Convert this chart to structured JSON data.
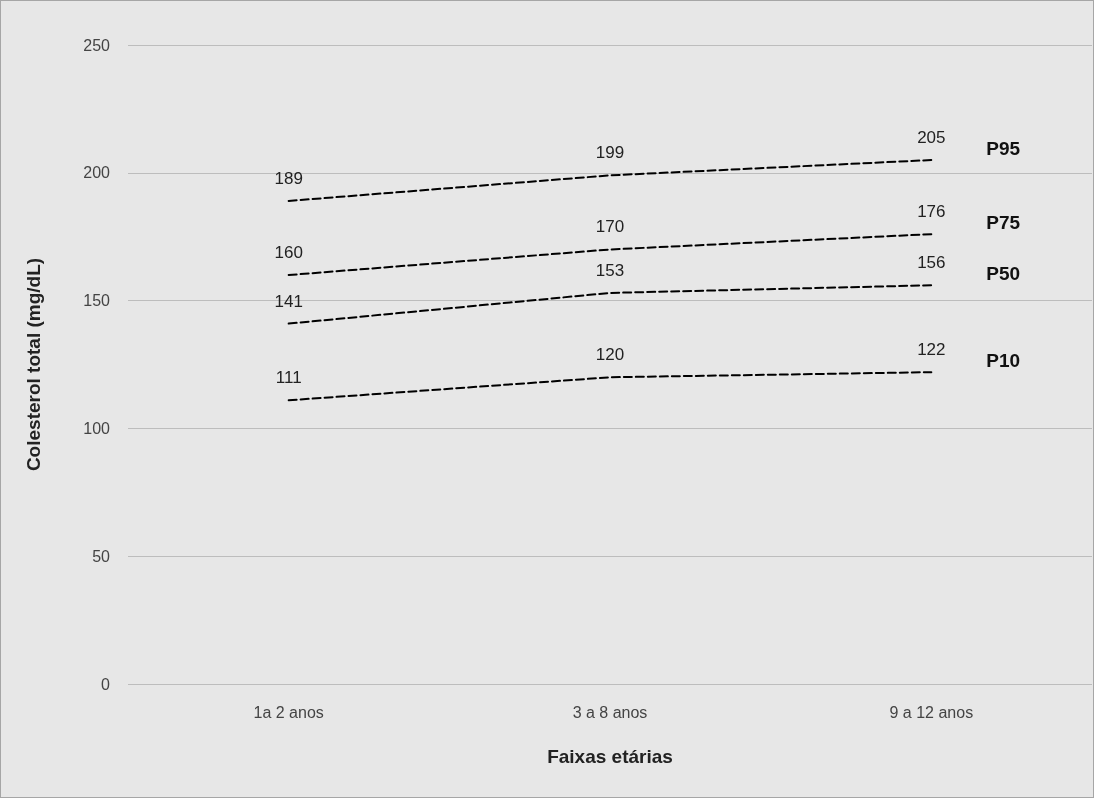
{
  "chart_data": {
    "type": "line",
    "xlabel": "Faixas etárias",
    "ylabel": "Colesterol total (mg/dL)",
    "categories": [
      "1a 2 anos",
      "3 a 8 anos",
      "9 a 12 anos"
    ],
    "series": [
      {
        "name": "P95",
        "color": "#000000",
        "values": [
          189,
          199,
          205
        ]
      },
      {
        "name": "P75",
        "color": "#000000",
        "values": [
          160,
          170,
          176
        ]
      },
      {
        "name": "P50",
        "color": "#000000",
        "values": [
          141,
          153,
          156
        ]
      },
      {
        "name": "P10",
        "color": "#000000",
        "values": [
          111,
          120,
          122
        ]
      }
    ],
    "ylim": [
      0,
      250
    ],
    "yticks": [
      0,
      50,
      100,
      150,
      200,
      250
    ],
    "grid": "y",
    "legend": false,
    "marker": "none",
    "line_style": "dashed",
    "data_labels": true
  }
}
